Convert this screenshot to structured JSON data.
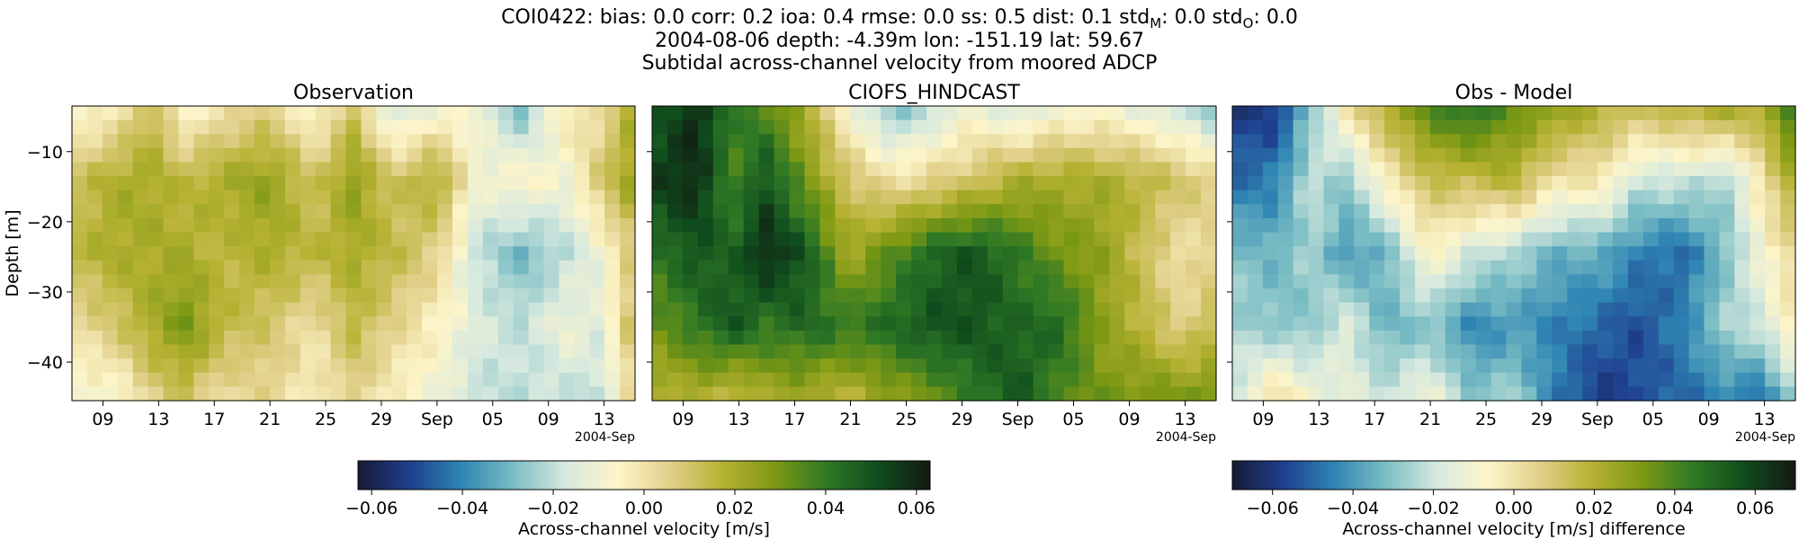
{
  "figure": {
    "title_line1_parts": [
      "COI0422: bias: 0.0  corr: 0.2  ioa: 0.4  rmse: 0.0  ss: 0.5  dist: 0.1  std",
      "M",
      ": 0.0  std",
      "O",
      ": 0.0"
    ],
    "title_line2": "2004-08-06 depth: -4.39m lon: -151.19 lat: 59.67",
    "title_line3": "Subtidal across-channel velocity from moored ADCP"
  },
  "colors": {
    "colormap_delta": [
      "#161b33",
      "#1f3f8f",
      "#2f86b4",
      "#7cbec4",
      "#d7e9df",
      "#fdf5c9",
      "#e1d08a",
      "#b7b233",
      "#7e9913",
      "#2f7925",
      "#0f4d1d",
      "#131a12"
    ]
  },
  "chart_data": [
    {
      "type": "heatmap",
      "title": "Observation",
      "xlabel": "",
      "ylabel": "Depth [m]",
      "x_ticks": [
        "09",
        "13",
        "17",
        "21",
        "25",
        "29",
        "Sep",
        "05",
        "09",
        "13"
      ],
      "x_offset_label": "2004-Sep",
      "x_range": [
        "2004-08-08",
        "2004-09-14"
      ],
      "y_ticks": [
        -10,
        -20,
        -30,
        -40
      ],
      "y_range": [
        -45.5,
        -3.5
      ],
      "value_range": [
        -0.063,
        0.063
      ],
      "colorbar": "shared-left",
      "grid": "off",
      "anchors_x": [
        0,
        0.08,
        0.14,
        0.2,
        0.27,
        0.35,
        0.43,
        0.5,
        0.57,
        0.65,
        0.72,
        0.8,
        0.88,
        0.94,
        1
      ],
      "anchors_y": [
        0,
        0.25,
        0.5,
        0.75,
        1
      ],
      "values": [
        [
          -0.01,
          -0.005,
          0.015,
          -0.01,
          0.0,
          0.005,
          -0.01,
          0.01,
          -0.02,
          -0.01,
          -0.01,
          -0.03,
          0.0,
          0.0,
          0.02
        ],
        [
          0.01,
          0.02,
          0.02,
          0.015,
          0.02,
          0.025,
          0.01,
          0.025,
          0.01,
          0.02,
          -0.01,
          -0.005,
          -0.01,
          0.01,
          0.025
        ],
        [
          0.015,
          0.02,
          0.02,
          0.02,
          0.015,
          0.02,
          0.015,
          0.02,
          0.015,
          0.005,
          -0.02,
          -0.03,
          -0.02,
          -0.01,
          0.01
        ],
        [
          0.0,
          0.01,
          0.02,
          0.03,
          0.015,
          0.01,
          0.0,
          0.015,
          0.005,
          -0.005,
          -0.015,
          -0.02,
          -0.01,
          -0.015,
          0.015
        ],
        [
          -0.01,
          -0.01,
          0.005,
          0.01,
          0.0,
          0.005,
          -0.005,
          0.005,
          -0.005,
          -0.01,
          -0.02,
          -0.02,
          -0.02,
          -0.02,
          0.005
        ]
      ]
    },
    {
      "type": "heatmap",
      "title": "CIOFS_HINDCAST",
      "xlabel": "",
      "ylabel": "",
      "x_ticks": [
        "09",
        "13",
        "17",
        "21",
        "25",
        "29",
        "Sep",
        "05",
        "09",
        "13"
      ],
      "x_offset_label": "2004-Sep",
      "x_range": [
        "2004-08-08",
        "2004-09-14"
      ],
      "y_ticks": [
        -10,
        -20,
        -30,
        -40
      ],
      "y_range": [
        -45.5,
        -3.5
      ],
      "value_range": [
        -0.063,
        0.063
      ],
      "colorbar": "shared-left",
      "grid": "off",
      "anchors_x": [
        0,
        0.08,
        0.14,
        0.2,
        0.27,
        0.35,
        0.43,
        0.5,
        0.57,
        0.65,
        0.72,
        0.8,
        0.88,
        0.94,
        1
      ],
      "anchors_y": [
        0,
        0.25,
        0.5,
        0.75,
        1
      ],
      "values": [
        [
          0.045,
          0.06,
          0.04,
          0.035,
          0.02,
          -0.01,
          -0.03,
          -0.02,
          -0.01,
          -0.02,
          -0.01,
          -0.01,
          -0.015,
          -0.02,
          -0.03
        ],
        [
          0.055,
          0.06,
          0.035,
          0.05,
          0.03,
          0.01,
          0.0,
          0.005,
          0.01,
          0.02,
          0.02,
          0.02,
          0.015,
          0.01,
          0.005
        ],
        [
          0.04,
          0.05,
          0.045,
          0.06,
          0.05,
          0.02,
          0.035,
          0.045,
          0.05,
          0.04,
          0.03,
          0.025,
          0.01,
          0.0,
          0.005
        ],
        [
          0.03,
          0.04,
          0.05,
          0.04,
          0.045,
          0.04,
          0.045,
          0.05,
          0.05,
          0.045,
          0.045,
          0.025,
          0.015,
          0.005,
          0.015
        ],
        [
          0.015,
          0.02,
          0.01,
          0.02,
          0.02,
          0.015,
          0.025,
          0.03,
          0.04,
          0.05,
          0.035,
          0.03,
          0.03,
          0.03,
          0.03
        ]
      ]
    },
    {
      "type": "heatmap",
      "title": "Obs - Model",
      "xlabel": "",
      "ylabel": "",
      "x_ticks": [
        "09",
        "13",
        "17",
        "21",
        "25",
        "29",
        "Sep",
        "05",
        "09",
        "13"
      ],
      "x_offset_label": "2004-Sep",
      "x_range": [
        "2004-08-08",
        "2004-09-14"
      ],
      "y_ticks": [
        -10,
        -20,
        -30,
        -40
      ],
      "y_range": [
        -45.5,
        -3.5
      ],
      "value_range": [
        -0.07,
        0.07
      ],
      "colorbar": "right",
      "grid": "off",
      "anchors_x": [
        0,
        0.08,
        0.14,
        0.2,
        0.27,
        0.35,
        0.43,
        0.5,
        0.57,
        0.65,
        0.72,
        0.8,
        0.88,
        0.94,
        1
      ],
      "anchors_y": [
        0,
        0.25,
        0.5,
        0.75,
        1
      ],
      "values": [
        [
          -0.06,
          -0.06,
          -0.03,
          0.0,
          0.02,
          0.04,
          0.05,
          0.035,
          0.03,
          0.02,
          0.015,
          0.02,
          0.025,
          0.02,
          0.05
        ],
        [
          -0.05,
          -0.045,
          -0.02,
          -0.03,
          -0.005,
          0.015,
          0.015,
          0.02,
          0.0,
          0.0,
          -0.02,
          -0.02,
          -0.025,
          0.0,
          0.025
        ],
        [
          -0.03,
          -0.035,
          -0.025,
          -0.04,
          -0.035,
          -0.005,
          -0.02,
          -0.025,
          -0.035,
          -0.035,
          -0.045,
          -0.05,
          -0.03,
          -0.01,
          0.005
        ],
        [
          -0.025,
          -0.03,
          -0.03,
          -0.015,
          -0.035,
          -0.03,
          -0.045,
          -0.04,
          -0.045,
          -0.05,
          -0.055,
          -0.045,
          -0.025,
          -0.02,
          0.0
        ],
        [
          -0.02,
          0.005,
          -0.01,
          -0.015,
          -0.02,
          -0.01,
          -0.03,
          -0.025,
          -0.045,
          -0.06,
          -0.055,
          -0.05,
          -0.045,
          -0.05,
          -0.025
        ]
      ]
    }
  ],
  "colorbars": [
    {
      "label": "Across-channel velocity [m/s]",
      "range": [
        -0.063,
        0.063
      ],
      "ticks": [
        "−0.06",
        "−0.04",
        "−0.02",
        "0.00",
        "0.02",
        "0.04",
        "0.06"
      ],
      "tick_values": [
        -0.06,
        -0.04,
        -0.02,
        0.0,
        0.02,
        0.04,
        0.06
      ]
    },
    {
      "label": "Across-channel velocity [m/s] difference",
      "range": [
        -0.07,
        0.07
      ],
      "ticks": [
        "−0.06",
        "−0.04",
        "−0.02",
        "0.00",
        "0.02",
        "0.04",
        "0.06"
      ],
      "tick_values": [
        -0.06,
        -0.04,
        -0.02,
        0.0,
        0.02,
        0.04,
        0.06
      ]
    }
  ]
}
